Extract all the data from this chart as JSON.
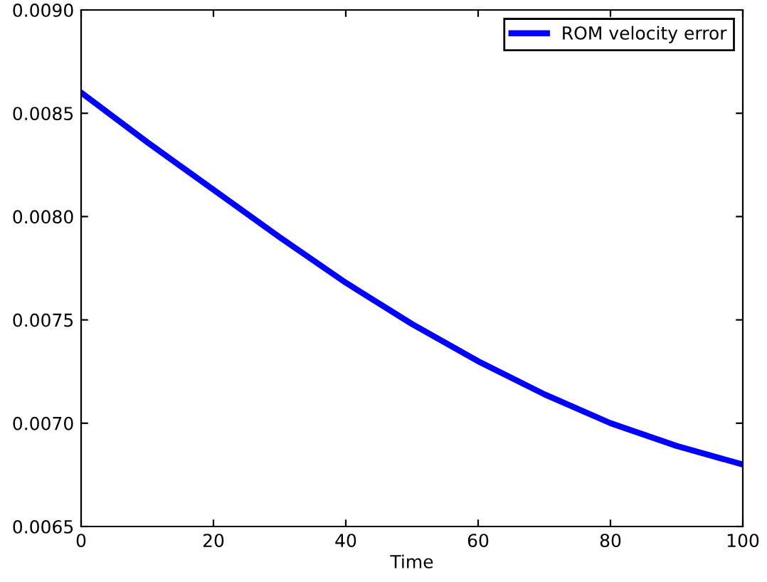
{
  "chart_data": {
    "type": "line",
    "xlabel": "Time",
    "x": [
      0,
      10,
      20,
      30,
      40,
      50,
      60,
      70,
      80,
      90,
      100
    ],
    "series": [
      {
        "name": "ROM velocity error",
        "color": "#0000ff",
        "values": [
          0.0086,
          0.00836,
          0.00813,
          0.0079,
          0.00768,
          0.00748,
          0.0073,
          0.00714,
          0.007,
          0.00689,
          0.0068
        ]
      }
    ],
    "xlim": [
      0,
      100
    ],
    "xticks": [
      0,
      20,
      40,
      60,
      80,
      100
    ],
    "ylim": [
      0.0065,
      0.009
    ],
    "yticks": [
      {
        "value": 0.0065,
        "label": "0.0065"
      },
      {
        "value": 0.007,
        "label": "0.0070"
      },
      {
        "value": 0.0075,
        "label": "0.0075"
      },
      {
        "value": 0.008,
        "label": "0.0080"
      },
      {
        "value": 0.0085,
        "label": "0.0085"
      },
      {
        "value": 0.009,
        "label": "0.0090"
      }
    ],
    "legend": "top right",
    "grid": false
  }
}
